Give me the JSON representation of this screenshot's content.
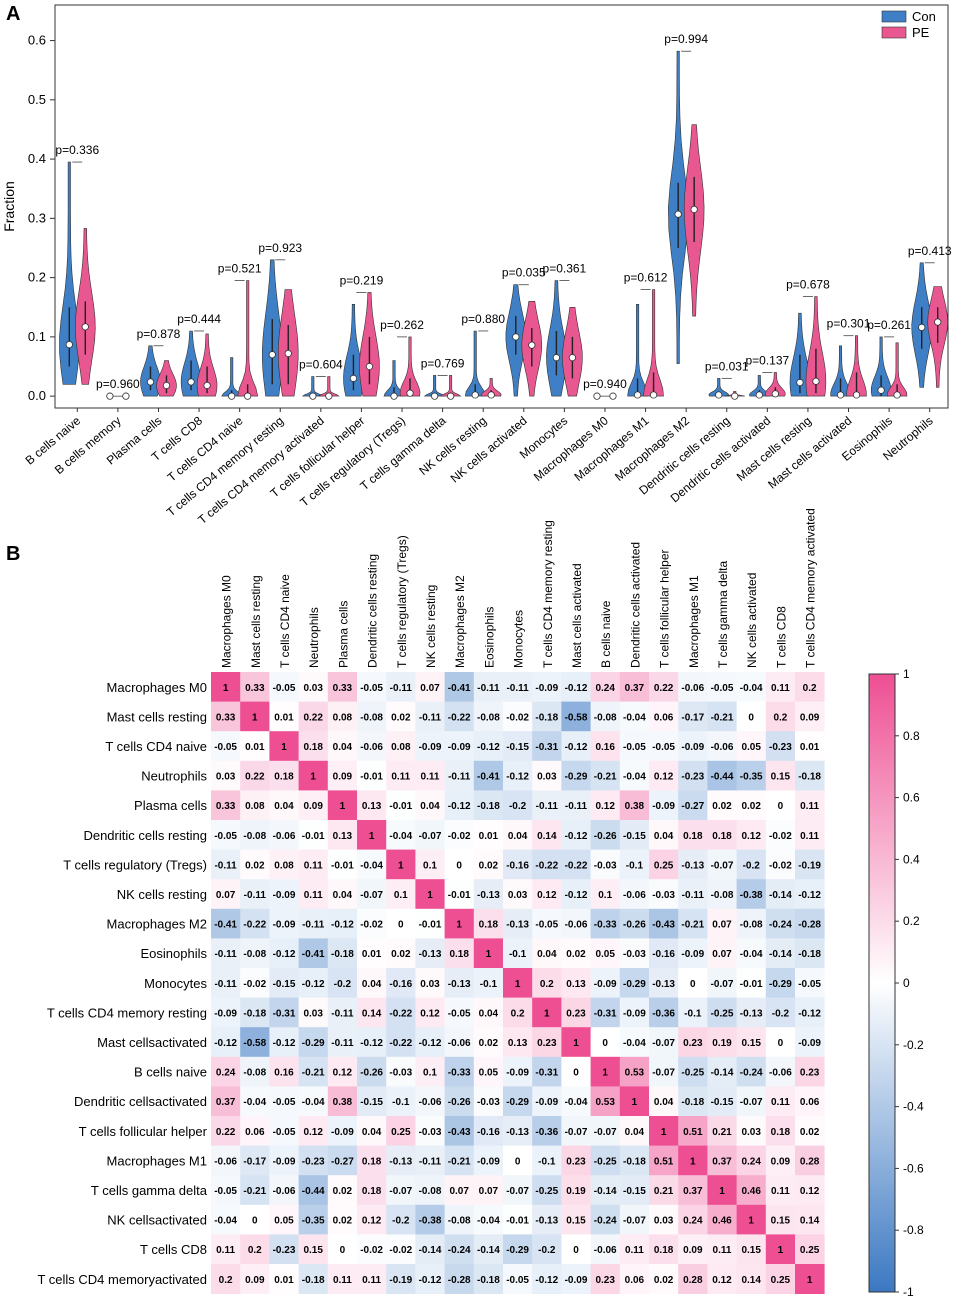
{
  "panel_a_label": "A",
  "panel_b_label": "B",
  "chart_data": [
    {
      "type": "violin",
      "ylabel": "Fraction",
      "ylim": [
        -0.02,
        0.66
      ],
      "yticks": [
        "0.0",
        "0.1",
        "0.2",
        "0.3",
        "0.4",
        "0.5",
        "0.6"
      ],
      "legend": [
        {
          "name": "Con",
          "color": "#3f7fc6"
        },
        {
          "name": "PE",
          "color": "#e8578f"
        }
      ],
      "legend_position": "top-right",
      "groups": [
        {
          "category": "B cells naive",
          "p": "p=0.336",
          "con": {
            "min": 0.02,
            "max": 0.395,
            "median": 0.087,
            "q1": 0.05,
            "q3": 0.15
          },
          "pe": {
            "min": 0.02,
            "max": 0.283,
            "median": 0.117,
            "q1": 0.07,
            "q3": 0.16
          }
        },
        {
          "category": "B cells memory",
          "p": "p=0.960",
          "con": {
            "min": 0,
            "max": 0,
            "median": 0,
            "q1": 0,
            "q3": 0
          },
          "pe": {
            "min": 0,
            "max": 0,
            "median": 0,
            "q1": 0,
            "q3": 0
          }
        },
        {
          "category": "Plasma cells",
          "p": "p=0.878",
          "con": {
            "min": 0,
            "max": 0.085,
            "median": 0.024,
            "q1": 0.01,
            "q3": 0.05
          },
          "pe": {
            "min": 0,
            "max": 0.06,
            "median": 0.018,
            "q1": 0.005,
            "q3": 0.035
          }
        },
        {
          "category": "T cells CD8",
          "p": "p=0.444",
          "con": {
            "min": 0,
            "max": 0.11,
            "median": 0.024,
            "q1": 0.01,
            "q3": 0.06
          },
          "pe": {
            "min": 0,
            "max": 0.105,
            "median": 0.018,
            "q1": 0.005,
            "q3": 0.05
          }
        },
        {
          "category": "T cells CD4 naive",
          "p": "p=0.521",
          "con": {
            "min": 0,
            "max": 0.065,
            "median": 0,
            "q1": 0,
            "q3": 0.01
          },
          "pe": {
            "min": 0,
            "max": 0.195,
            "median": 0,
            "q1": 0,
            "q3": 0.02
          }
        },
        {
          "category": "T cells CD4 memory resting",
          "p": "p=0.923",
          "con": {
            "min": 0,
            "max": 0.23,
            "median": 0.07,
            "q1": 0.02,
            "q3": 0.13
          },
          "pe": {
            "min": 0,
            "max": 0.18,
            "median": 0.072,
            "q1": 0.02,
            "q3": 0.12
          }
        },
        {
          "category": "T cells CD4 memory activated",
          "p": "p=0.604",
          "con": {
            "min": 0,
            "max": 0.033,
            "median": 0,
            "q1": 0,
            "q3": 0.005
          },
          "pe": {
            "min": 0,
            "max": 0.033,
            "median": 0,
            "q1": 0,
            "q3": 0.005
          }
        },
        {
          "category": "T cells follicular helper",
          "p": "p=0.219",
          "con": {
            "min": 0,
            "max": 0.155,
            "median": 0.03,
            "q1": 0.01,
            "q3": 0.07
          },
          "pe": {
            "min": 0,
            "max": 0.175,
            "median": 0.05,
            "q1": 0.02,
            "q3": 0.1
          }
        },
        {
          "category": "T cells regulatory (Tregs)",
          "p": "p=0.262",
          "con": {
            "min": 0,
            "max": 0.06,
            "median": 0,
            "q1": 0,
            "q3": 0.015
          },
          "pe": {
            "min": 0,
            "max": 0.1,
            "median": 0.005,
            "q1": 0,
            "q3": 0.03
          }
        },
        {
          "category": "T cells gamma delta",
          "p": "p=0.769",
          "con": {
            "min": 0,
            "max": 0.035,
            "median": 0,
            "q1": 0,
            "q3": 0.005
          },
          "pe": {
            "min": 0,
            "max": 0.035,
            "median": 0,
            "q1": 0,
            "q3": 0.005
          }
        },
        {
          "category": "NK cells resting",
          "p": "p=0.880",
          "con": {
            "min": 0,
            "max": 0.11,
            "median": 0.002,
            "q1": 0,
            "q3": 0.02
          },
          "pe": {
            "min": 0,
            "max": 0.03,
            "median": 0.002,
            "q1": 0,
            "q3": 0.01
          }
        },
        {
          "category": "NK cells activated",
          "p": "p=0.035",
          "con": {
            "min": 0,
            "max": 0.188,
            "median": 0.1,
            "q1": 0.07,
            "q3": 0.135
          },
          "pe": {
            "min": 0,
            "max": 0.16,
            "median": 0.086,
            "q1": 0.05,
            "q3": 0.115
          }
        },
        {
          "category": "Monocytes",
          "p": "p=0.361",
          "con": {
            "min": 0,
            "max": 0.195,
            "median": 0.065,
            "q1": 0.035,
            "q3": 0.11
          },
          "pe": {
            "min": 0,
            "max": 0.15,
            "median": 0.065,
            "q1": 0.03,
            "q3": 0.1
          }
        },
        {
          "category": "Macrophages M0",
          "p": "p=0.940",
          "con": {
            "min": 0,
            "max": 0,
            "median": 0,
            "q1": 0,
            "q3": 0
          },
          "pe": {
            "min": 0,
            "max": 0,
            "median": 0,
            "q1": 0,
            "q3": 0
          }
        },
        {
          "category": "Macrophages M1",
          "p": "p=0.612",
          "con": {
            "min": 0,
            "max": 0.155,
            "median": 0.002,
            "q1": 0,
            "q3": 0.03
          },
          "pe": {
            "min": 0,
            "max": 0.18,
            "median": 0.002,
            "q1": 0,
            "q3": 0.04
          }
        },
        {
          "category": "Macrophages M2",
          "p": "p=0.994",
          "con": {
            "min": 0.055,
            "max": 0.582,
            "median": 0.307,
            "q1": 0.25,
            "q3": 0.36
          },
          "pe": {
            "min": 0.135,
            "max": 0.458,
            "median": 0.315,
            "q1": 0.26,
            "q3": 0.37
          }
        },
        {
          "category": "Dendritic cells resting",
          "p": "p=0.031",
          "con": {
            "min": 0,
            "max": 0.03,
            "median": 0.002,
            "q1": 0,
            "q3": 0.008
          },
          "pe": {
            "min": 0,
            "max": 0.008,
            "median": 0,
            "q1": 0,
            "q3": 0.002
          }
        },
        {
          "category": "Dendritic cells activated",
          "p": "p=0.137",
          "con": {
            "min": 0,
            "max": 0.035,
            "median": 0.002,
            "q1": 0,
            "q3": 0.01
          },
          "pe": {
            "min": 0,
            "max": 0.04,
            "median": 0.004,
            "q1": 0,
            "q3": 0.015
          }
        },
        {
          "category": "Mast cells resting",
          "p": "p=0.678",
          "con": {
            "min": 0,
            "max": 0.14,
            "median": 0.023,
            "q1": 0.005,
            "q3": 0.07
          },
          "pe": {
            "min": 0,
            "max": 0.168,
            "median": 0.025,
            "q1": 0.005,
            "q3": 0.08
          }
        },
        {
          "category": "Mast cells activated",
          "p": "p=0.301",
          "con": {
            "min": 0,
            "max": 0.085,
            "median": 0.002,
            "q1": 0,
            "q3": 0.03
          },
          "pe": {
            "min": 0,
            "max": 0.102,
            "median": 0.002,
            "q1": 0,
            "q3": 0.04
          }
        },
        {
          "category": "Eosinophils",
          "p": "p=0.261",
          "con": {
            "min": 0,
            "max": 0.1,
            "median": 0.01,
            "q1": 0,
            "q3": 0.035
          },
          "pe": {
            "min": 0,
            "max": 0.09,
            "median": 0.002,
            "q1": 0,
            "q3": 0.02
          }
        },
        {
          "category": "Neutrophils",
          "p": "p=0.413",
          "con": {
            "min": 0.015,
            "max": 0.225,
            "median": 0.116,
            "q1": 0.08,
            "q3": 0.15
          },
          "pe": {
            "min": 0.015,
            "max": 0.185,
            "median": 0.125,
            "q1": 0.09,
            "q3": 0.15
          }
        }
      ]
    },
    {
      "type": "heatmap",
      "title": "",
      "row_labels": [
        "Macrophages M0",
        "Mast cells resting",
        "T cells CD4 naive",
        "Neutrophils",
        "Plasma cells",
        "Dendritic cells resting",
        "T cells regulatory (Tregs)",
        "NK cells resting",
        "Macrophages M2",
        "Eosinophils",
        "Monocytes",
        "T cells CD4 memory resting",
        "Mast cellsactivated",
        "B cells naive",
        "Dendritic cellsactivated",
        "T cells follicular helper",
        "Macrophages M1",
        "T cells gamma delta",
        "NK cellsactivated",
        "T cells CD8",
        "T cells CD4 memoryactivated"
      ],
      "col_labels": [
        "Macrophages M0",
        "Mast cells resting",
        "T cells CD4 naive",
        "Neutrophils",
        "Plasma cells",
        "Dendritic cells resting",
        "T cells regulatory (Tregs)",
        "NK cells resting",
        "Macrophages M2",
        "Eosinophils",
        "Monocytes",
        "T cells CD4 memory resting",
        "Mast cells activated",
        "B cells naive",
        "Dendritic cells activated",
        "T cells follicular helper",
        "Macrophages M1",
        "T cells gamma delta",
        "NK cells activated",
        "T cells CD8",
        "T cells CD4 memory activated"
      ],
      "values": [
        [
          1,
          0.33,
          -0.05,
          0.03,
          0.33,
          -0.05,
          -0.11,
          0.07,
          -0.41,
          -0.11,
          -0.11,
          -0.09,
          -0.12,
          0.24,
          0.37,
          0.22,
          -0.06,
          -0.05,
          -0.04,
          0.11,
          0.2
        ],
        [
          0.33,
          1,
          0.01,
          0.22,
          0.08,
          -0.08,
          0.02,
          -0.11,
          -0.22,
          -0.08,
          -0.02,
          -0.18,
          -0.58,
          -0.08,
          -0.04,
          0.06,
          -0.17,
          -0.21,
          0,
          0.2,
          0.09
        ],
        [
          -0.05,
          0.01,
          1,
          0.18,
          0.04,
          -0.06,
          0.08,
          -0.09,
          -0.09,
          -0.12,
          -0.15,
          -0.31,
          -0.12,
          0.16,
          -0.05,
          -0.05,
          -0.09,
          -0.06,
          0.05,
          -0.23,
          0.01
        ],
        [
          0.03,
          0.22,
          0.18,
          1,
          0.09,
          -0.01,
          0.11,
          0.11,
          -0.11,
          -0.41,
          -0.12,
          0.03,
          -0.29,
          -0.21,
          -0.04,
          0.12,
          -0.23,
          -0.44,
          -0.35,
          0.15,
          -0.18
        ],
        [
          0.33,
          0.08,
          0.04,
          0.09,
          1,
          0.13,
          -0.01,
          0.04,
          -0.12,
          -0.18,
          -0.2,
          -0.11,
          -0.11,
          0.12,
          0.38,
          -0.09,
          -0.27,
          0.02,
          0.02,
          0,
          0.11
        ],
        [
          -0.05,
          -0.08,
          -0.06,
          -0.01,
          0.13,
          1,
          -0.04,
          -0.07,
          -0.02,
          0.01,
          0.04,
          0.14,
          -0.12,
          -0.26,
          -0.15,
          0.04,
          0.18,
          0.18,
          0.12,
          -0.02,
          0.11
        ],
        [
          -0.11,
          0.02,
          0.08,
          0.11,
          -0.01,
          -0.04,
          1,
          0.1,
          0,
          0.02,
          -0.16,
          -0.22,
          -0.22,
          -0.03,
          -0.1,
          0.25,
          -0.13,
          -0.07,
          -0.2,
          -0.02,
          -0.19
        ],
        [
          0.07,
          -0.11,
          -0.09,
          0.11,
          0.04,
          -0.07,
          0.1,
          1,
          -0.01,
          -0.13,
          0.03,
          0.12,
          -0.12,
          0.1,
          -0.06,
          -0.03,
          -0.11,
          -0.08,
          -0.38,
          -0.14,
          -0.12
        ],
        [
          -0.41,
          -0.22,
          -0.09,
          -0.11,
          -0.12,
          -0.02,
          0,
          -0.01,
          1,
          0.18,
          -0.13,
          -0.05,
          -0.06,
          -0.33,
          -0.26,
          -0.43,
          -0.21,
          0.07,
          -0.08,
          -0.24,
          -0.28
        ],
        [
          -0.11,
          -0.08,
          -0.12,
          -0.41,
          -0.18,
          0.01,
          0.02,
          -0.13,
          0.18,
          1,
          -0.1,
          0.04,
          0.02,
          0.05,
          -0.03,
          -0.16,
          -0.09,
          0.07,
          -0.04,
          -0.14,
          -0.18
        ],
        [
          -0.11,
          -0.02,
          -0.15,
          -0.12,
          -0.2,
          0.04,
          -0.16,
          0.03,
          -0.13,
          -0.1,
          1,
          0.2,
          0.13,
          -0.09,
          -0.29,
          -0.13,
          0,
          -0.07,
          -0.01,
          -0.29,
          -0.05
        ],
        [
          -0.09,
          -0.18,
          -0.31,
          0.03,
          -0.11,
          0.14,
          -0.22,
          0.12,
          -0.05,
          0.04,
          0.2,
          1,
          0.23,
          -0.31,
          -0.09,
          -0.36,
          -0.1,
          -0.25,
          -0.13,
          -0.2,
          -0.12
        ],
        [
          -0.12,
          -0.58,
          -0.12,
          -0.29,
          -0.11,
          -0.12,
          -0.22,
          -0.12,
          -0.06,
          0.02,
          0.13,
          0.23,
          1,
          0,
          -0.04,
          -0.07,
          0.23,
          0.19,
          0.15,
          0,
          -0.09
        ],
        [
          0.24,
          -0.08,
          0.16,
          -0.21,
          0.12,
          -0.26,
          -0.03,
          0.1,
          -0.33,
          0.05,
          -0.09,
          -0.31,
          0,
          1,
          0.53,
          -0.07,
          -0.25,
          -0.14,
          -0.24,
          -0.06,
          0.23
        ],
        [
          0.37,
          -0.04,
          -0.05,
          -0.04,
          0.38,
          -0.15,
          -0.1,
          -0.06,
          -0.26,
          -0.03,
          -0.29,
          -0.09,
          -0.04,
          0.53,
          1,
          0.04,
          -0.18,
          -0.15,
          -0.07,
          0.11,
          0.06
        ],
        [
          0.22,
          0.06,
          -0.05,
          0.12,
          -0.09,
          0.04,
          0.25,
          -0.03,
          -0.43,
          -0.16,
          -0.13,
          -0.36,
          -0.07,
          -0.07,
          0.04,
          1,
          0.51,
          0.21,
          0.03,
          0.18,
          0.02
        ],
        [
          -0.06,
          -0.17,
          -0.09,
          -0.23,
          -0.27,
          0.18,
          -0.13,
          -0.11,
          -0.21,
          -0.09,
          0,
          -0.1,
          0.23,
          -0.25,
          -0.18,
          0.51,
          1,
          0.37,
          0.24,
          0.09,
          0.28
        ],
        [
          -0.05,
          -0.21,
          -0.06,
          -0.44,
          0.02,
          0.18,
          -0.07,
          -0.08,
          0.07,
          0.07,
          -0.07,
          -0.25,
          0.19,
          -0.14,
          -0.15,
          0.21,
          0.37,
          1,
          0.46,
          0.11,
          0.12
        ],
        [
          -0.04,
          0,
          0.05,
          -0.35,
          0.02,
          0.12,
          -0.2,
          -0.38,
          -0.08,
          -0.04,
          -0.01,
          -0.13,
          0.15,
          -0.24,
          -0.07,
          0.03,
          0.24,
          0.46,
          1,
          0.15,
          0.14
        ],
        [
          0.11,
          0.2,
          -0.23,
          0.15,
          0,
          -0.02,
          -0.02,
          -0.14,
          -0.24,
          -0.14,
          -0.29,
          -0.2,
          0,
          -0.06,
          0.11,
          0.18,
          0.09,
          0.11,
          0.15,
          1,
          0.25
        ],
        [
          0.2,
          0.09,
          0.01,
          -0.18,
          0.11,
          0.11,
          -0.19,
          -0.12,
          -0.28,
          -0.18,
          -0.05,
          -0.12,
          -0.09,
          0.23,
          0.06,
          0.02,
          0.28,
          0.12,
          0.14,
          0.25,
          1
        ]
      ],
      "colorbar": {
        "range": [
          -1,
          1
        ],
        "ticks": [
          "1",
          "0.8",
          "0.6",
          "0.4",
          "0.2",
          "0",
          "-0.2",
          "-0.4",
          "-0.6",
          "-0.8",
          "-1"
        ],
        "low_color": "#3b78c2",
        "mid_color": "#ffffff",
        "high_color": "#ee4f93"
      }
    }
  ]
}
